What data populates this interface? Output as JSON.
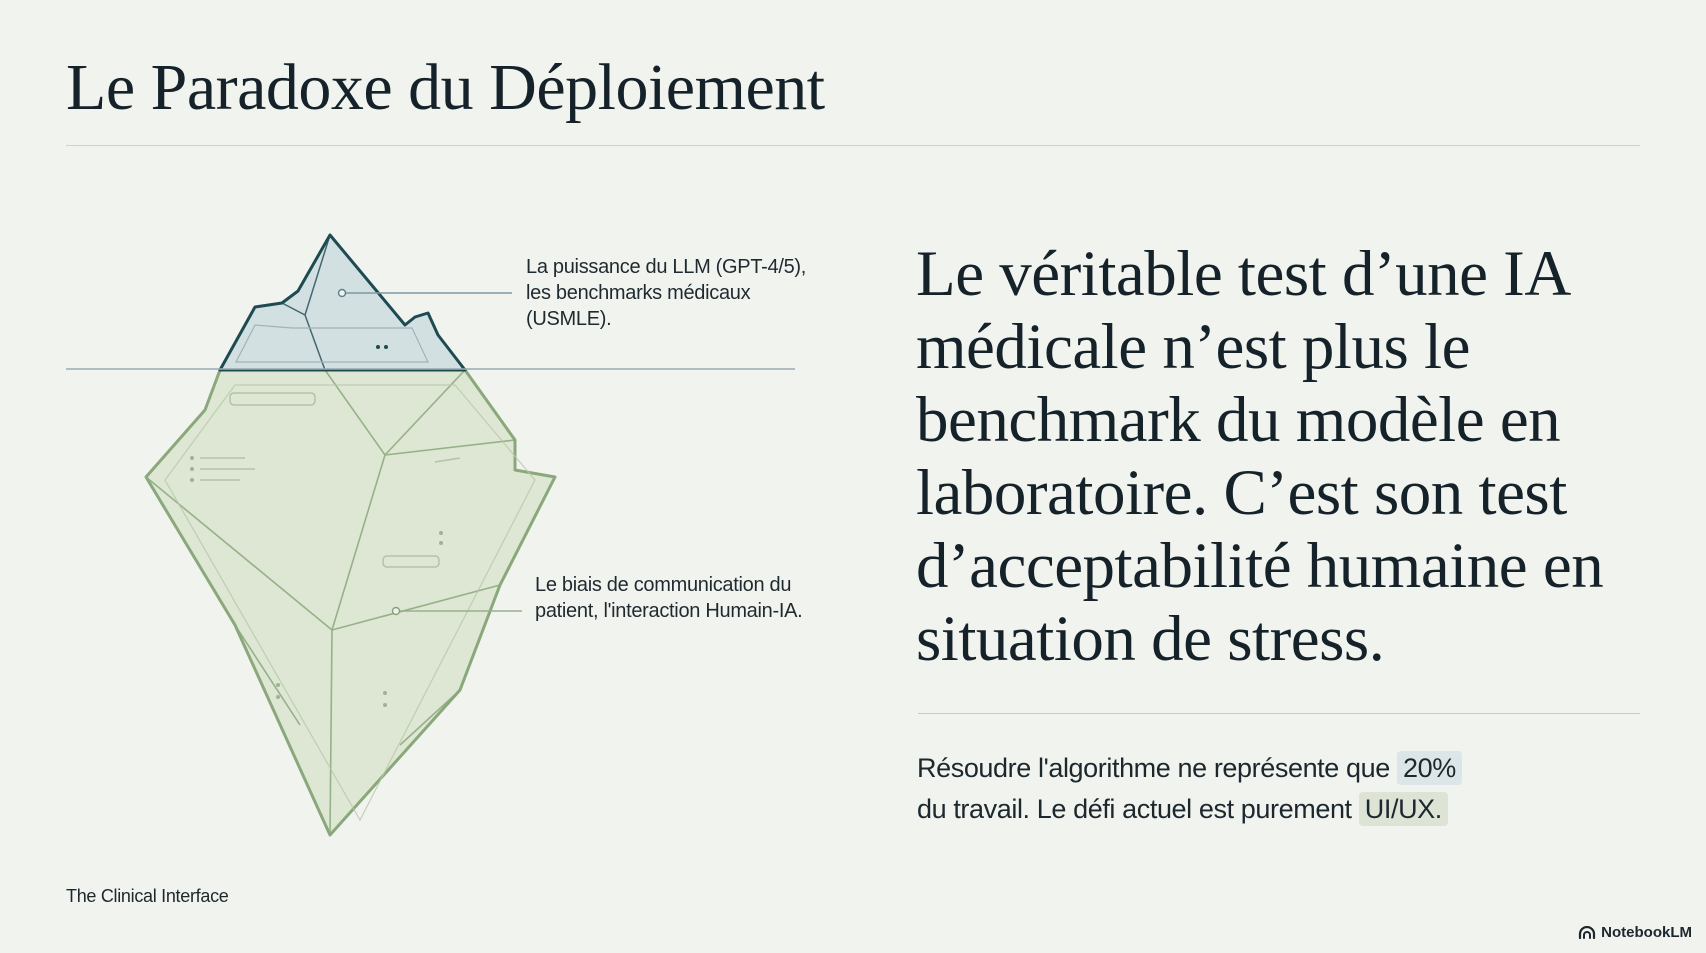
{
  "header": {
    "title": "Le Paradoxe du Déploiement"
  },
  "diagram": {
    "label_top": "La puissance du LLM (GPT-4/5), les benchmarks médicaux (USMLE).",
    "label_bottom": "Le biais de communication du patient, l'interaction Humain-IA.",
    "colors": {
      "tip_fill": "#d3e0e2",
      "tip_stroke": "#1e4a52",
      "body_fill": "#dde7d3",
      "body_stroke": "#8aa87c"
    }
  },
  "main": {
    "quote": "Le véritable test d’une IA médicale n’est plus le benchmark du modèle en laboratoire. C’est son test d’acceptabilité humaine en situation de stress.",
    "note_part1": "Résoudre l'algorithme ne représente que",
    "note_highlight1": "20%",
    "note_part2": "du travail. Le défi actuel est purement",
    "note_highlight2": "UI/UX."
  },
  "footer": {
    "text": "The Clinical Interface",
    "brand": "NotebookLM",
    "brand_icon": "notebooklm-logo-icon"
  }
}
